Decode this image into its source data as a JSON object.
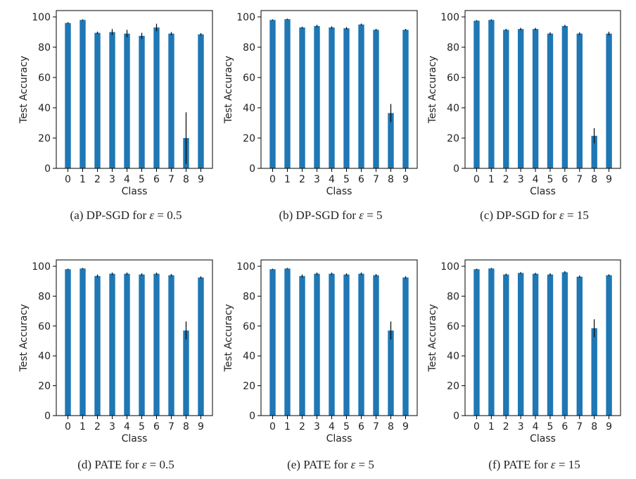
{
  "chart_data": [
    {
      "type": "bar",
      "caption_prefix": "(a) DP-SGD for",
      "caption_eps": "0.5",
      "categories": [
        "0",
        "1",
        "2",
        "3",
        "4",
        "5",
        "6",
        "7",
        "8",
        "9"
      ],
      "values": [
        96,
        98,
        89.5,
        90,
        89,
        87.5,
        93,
        89,
        20,
        88.5
      ],
      "errors": [
        0.5,
        0.4,
        0.8,
        2,
        2.5,
        2,
        2.5,
        1,
        17,
        0.8
      ],
      "xlabel": "Class",
      "ylabel": "Test Accuracy",
      "ylim": [
        0,
        100
      ],
      "yticks": [
        0,
        20,
        40,
        60,
        80,
        100
      ],
      "color": "#1f77b4"
    },
    {
      "type": "bar",
      "caption_prefix": "(b) DP-SGD for",
      "caption_eps": "5",
      "categories": [
        "0",
        "1",
        "2",
        "3",
        "4",
        "5",
        "6",
        "7",
        "8",
        "9"
      ],
      "values": [
        98,
        98.5,
        93,
        94,
        93,
        92.5,
        95,
        91.5,
        36.5,
        91.5
      ],
      "errors": [
        0.4,
        0.4,
        0.6,
        0.8,
        0.8,
        0.8,
        0.6,
        0.6,
        6,
        0.6
      ],
      "xlabel": "Class",
      "ylabel": "Test Accuracy",
      "ylim": [
        0,
        100
      ],
      "yticks": [
        0,
        20,
        40,
        60,
        80,
        100
      ],
      "color": "#1f77b4"
    },
    {
      "type": "bar",
      "caption_prefix": "(c) DP-SGD for",
      "caption_eps": "15",
      "categories": [
        "0",
        "1",
        "2",
        "3",
        "4",
        "5",
        "6",
        "7",
        "8",
        "9"
      ],
      "values": [
        97.5,
        98,
        91.5,
        92,
        92,
        89,
        94,
        89,
        21.5,
        89
      ],
      "errors": [
        0.4,
        0.4,
        0.6,
        0.8,
        0.8,
        0.8,
        0.8,
        0.8,
        5,
        1.2
      ],
      "xlabel": "Class",
      "ylabel": "Test Accuracy",
      "ylim": [
        0,
        100
      ],
      "yticks": [
        0,
        20,
        40,
        60,
        80,
        100
      ],
      "color": "#1f77b4"
    },
    {
      "type": "bar",
      "caption_prefix": "(d) PATE for",
      "caption_eps": "0.5",
      "categories": [
        "0",
        "1",
        "2",
        "3",
        "4",
        "5",
        "6",
        "7",
        "8",
        "9"
      ],
      "values": [
        98,
        98.5,
        93.5,
        95,
        95,
        94.5,
        95,
        94,
        57,
        92.5
      ],
      "errors": [
        0.4,
        0.4,
        1,
        0.8,
        0.8,
        0.8,
        0.8,
        0.8,
        6,
        0.8
      ],
      "xlabel": "Class",
      "ylabel": "Test Accuracy",
      "ylim": [
        0,
        100
      ],
      "yticks": [
        0,
        20,
        40,
        60,
        80,
        100
      ],
      "color": "#1f77b4"
    },
    {
      "type": "bar",
      "caption_prefix": "(e) PATE for",
      "caption_eps": "5",
      "categories": [
        "0",
        "1",
        "2",
        "3",
        "4",
        "5",
        "6",
        "7",
        "8",
        "9"
      ],
      "values": [
        98,
        98.5,
        93.5,
        95,
        95,
        94.5,
        95,
        94,
        57,
        92.5
      ],
      "errors": [
        0.4,
        0.4,
        1,
        0.8,
        0.8,
        0.8,
        0.8,
        0.8,
        6,
        0.8
      ],
      "xlabel": "Class",
      "ylabel": "Test Accuracy",
      "ylim": [
        0,
        100
      ],
      "yticks": [
        0,
        20,
        40,
        60,
        80,
        100
      ],
      "color": "#1f77b4"
    },
    {
      "type": "bar",
      "caption_prefix": "(f) PATE for",
      "caption_eps": "15",
      "categories": [
        "0",
        "1",
        "2",
        "3",
        "4",
        "5",
        "6",
        "7",
        "8",
        "9"
      ],
      "values": [
        98,
        98.5,
        94.5,
        95.5,
        95,
        94.5,
        96,
        93,
        58.5,
        94
      ],
      "errors": [
        0.4,
        0.4,
        0.6,
        0.6,
        0.6,
        0.8,
        0.8,
        0.8,
        6,
        0.6
      ],
      "xlabel": "Class",
      "ylabel": "Test Accuracy",
      "ylim": [
        0,
        100
      ],
      "yticks": [
        0,
        20,
        40,
        60,
        80,
        100
      ],
      "color": "#1f77b4"
    }
  ]
}
